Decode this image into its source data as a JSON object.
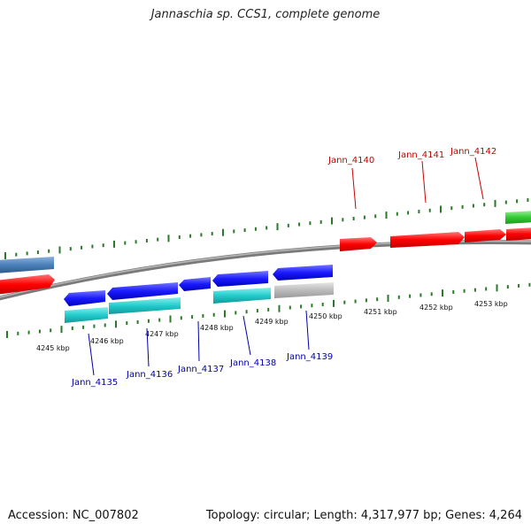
{
  "title": "Jannaschia sp. CCS1, complete genome",
  "footer": {
    "accession": "Accession: NC_007802",
    "summary": "Topology: circular; Length: 4,317,977 bp; Genes: 4,264"
  },
  "kbp_labels": [
    "4245 kbp",
    "4246 kbp",
    "4247 kbp",
    "4248 kbp",
    "4249 kbp",
    "4250 kbp",
    "4251 kbp",
    "4252 kbp",
    "4253 kbp"
  ],
  "gene_labels_top": [
    "Jann_4140",
    "Jann_4141",
    "Jann_4142"
  ],
  "gene_labels_bottom": [
    "Jann_4135",
    "Jann_4136",
    "Jann_4137",
    "Jann_4138",
    "Jann_4139"
  ],
  "colors": {
    "forward_gene": "#ff0000",
    "reverse_gene": "#1a1aff",
    "rna_gene": "#22cccc",
    "other_gene": "#bbbbbb",
    "steel_gene": "#4a7fb8",
    "green_gene": "#33cc33",
    "tick": "#2a7a2a",
    "label_top": "#cc0000",
    "label_bottom": "#0000aa",
    "backbone": "#888888"
  }
}
